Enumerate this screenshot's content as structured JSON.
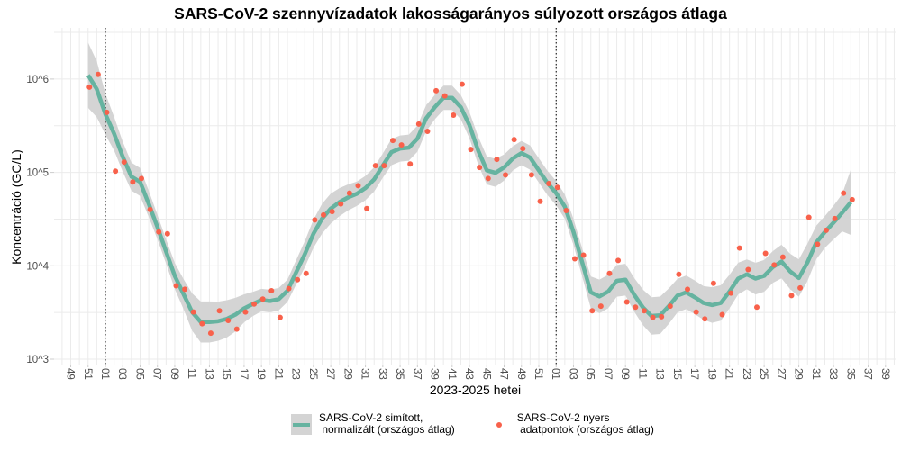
{
  "chart_data": {
    "type": "line",
    "title": "SARS-CoV-2 szennyvízadatok lakosságarányos súlyozott országos átlaga",
    "xlabel": "2023-2025 hetei",
    "ylabel": "Koncentráció (GC/L)",
    "y_scale": "log10",
    "ylim": [
      1000,
      3000000
    ],
    "y_ticks": [
      {
        "value": 1000,
        "label": "10^3"
      },
      {
        "value": 10000,
        "label": "10^4"
      },
      {
        "value": 100000,
        "label": "10^5"
      },
      {
        "value": 1000000,
        "label": "10^6"
      }
    ],
    "x_ticks": [
      "2023-W49",
      "2023-W51",
      "2024-W01",
      "2024-W03",
      "2024-W05",
      "2024-W07",
      "2024-W09",
      "2024-W11",
      "2024-W13",
      "2024-W15",
      "2024-W17",
      "2024-W19",
      "2024-W21",
      "2024-W23",
      "2024-W25",
      "2024-W27",
      "2024-W29",
      "2024-W31",
      "2024-W33",
      "2024-W35",
      "2024-W37",
      "2024-W39",
      "2024-W41",
      "2024-W43",
      "2024-W45",
      "2024-W47",
      "2024-W49",
      "2024-W51",
      "2025-W01",
      "2025-W03",
      "2025-W05",
      "2025-W07",
      "2025-W09",
      "2025-W11",
      "2025-W13",
      "2025-W15",
      "2025-W17",
      "2025-W19",
      "2025-W21",
      "2025-W23",
      "2025-W25",
      "2025-W27",
      "2025-W29",
      "2025-W31",
      "2025-W33",
      "2025-W35",
      "2025-W37",
      "2025-W39"
    ],
    "x_tick_labels": [
      "49",
      "51",
      "01",
      "03",
      "05",
      "07",
      "09",
      "11",
      "13",
      "15",
      "17",
      "19",
      "21",
      "23",
      "25",
      "27",
      "29",
      "31",
      "33",
      "35",
      "37",
      "39",
      "41",
      "43",
      "45",
      "47",
      "49",
      "51",
      "01",
      "03",
      "05",
      "07",
      "09",
      "11",
      "13",
      "15",
      "17",
      "19",
      "21",
      "23",
      "25",
      "27",
      "29",
      "31",
      "33",
      "35",
      "37",
      "39"
    ],
    "year_boundaries": [
      "2024-W01",
      "2025-W01"
    ],
    "grid": true,
    "legend_position": "bottom",
    "x": [
      "2023-W51",
      "2023-W52",
      "2024-W01",
      "2024-W02",
      "2024-W03",
      "2024-W04",
      "2024-W05",
      "2024-W06",
      "2024-W07",
      "2024-W08",
      "2024-W09",
      "2024-W10",
      "2024-W11",
      "2024-W12",
      "2024-W13",
      "2024-W14",
      "2024-W15",
      "2024-W16",
      "2024-W17",
      "2024-W18",
      "2024-W19",
      "2024-W20",
      "2024-W21",
      "2024-W22",
      "2024-W23",
      "2024-W24",
      "2024-W25",
      "2024-W26",
      "2024-W27",
      "2024-W28",
      "2024-W29",
      "2024-W30",
      "2024-W31",
      "2024-W32",
      "2024-W33",
      "2024-W34",
      "2024-W35",
      "2024-W36",
      "2024-W37",
      "2024-W38",
      "2024-W39",
      "2024-W40",
      "2024-W41",
      "2024-W42",
      "2024-W43",
      "2024-W44",
      "2024-W45",
      "2024-W46",
      "2024-W47",
      "2024-W48",
      "2024-W49",
      "2024-W50",
      "2024-W51",
      "2024-W52",
      "2025-W01",
      "2025-W02",
      "2025-W03",
      "2025-W04",
      "2025-W05",
      "2025-W06",
      "2025-W07",
      "2025-W08",
      "2025-W09",
      "2025-W10",
      "2025-W11",
      "2025-W12",
      "2025-W13",
      "2025-W14",
      "2025-W15",
      "2025-W16",
      "2025-W17",
      "2025-W18",
      "2025-W19",
      "2025-W20",
      "2025-W21",
      "2025-W22",
      "2025-W23",
      "2025-W24",
      "2025-W25",
      "2025-W26",
      "2025-W27",
      "2025-W28",
      "2025-W29",
      "2025-W30",
      "2025-W31",
      "2025-W32",
      "2025-W33",
      "2025-W34",
      "2025-W35"
    ],
    "series": [
      {
        "name": "SARS-CoV-2 simított,\n normalizált (országos átlag)",
        "kind": "smoothed-line-with-ci",
        "color": "#66b3a0",
        "band_color": "#d4d4d4",
        "values": [
          1100000,
          780000,
          420000,
          260000,
          147000,
          90000,
          79000,
          46000,
          26000,
          14200,
          7800,
          5000,
          3200,
          2500,
          2500,
          2550,
          2700,
          3000,
          3500,
          3900,
          4300,
          4200,
          4400,
          5400,
          8500,
          13300,
          22000,
          32000,
          41000,
          48000,
          54000,
          59000,
          68000,
          84000,
          118000,
          165000,
          180000,
          184000,
          230000,
          380000,
          500000,
          630000,
          630000,
          500000,
          320000,
          172000,
          105000,
          99000,
          113000,
          141000,
          161000,
          144000,
          105000,
          77000,
          60000,
          43000,
          23000,
          10900,
          5200,
          4700,
          5300,
          6900,
          7100,
          4900,
          3600,
          2900,
          2950,
          3700,
          4800,
          5200,
          4600,
          4000,
          3800,
          4000,
          5300,
          7300,
          8100,
          7300,
          7800,
          9700,
          11100,
          8700,
          7400,
          10900,
          17700,
          23000,
          29000,
          37000,
          48000
        ],
        "ci_log10_halfwidth": [
          0.35,
          0.3,
          0.22,
          0.18,
          0.16,
          0.15,
          0.15,
          0.14,
          0.13,
          0.13,
          0.14,
          0.16,
          0.2,
          0.22,
          0.22,
          0.21,
          0.2,
          0.18,
          0.15,
          0.13,
          0.12,
          0.12,
          0.12,
          0.12,
          0.13,
          0.14,
          0.15,
          0.16,
          0.16,
          0.15,
          0.14,
          0.13,
          0.13,
          0.13,
          0.13,
          0.14,
          0.14,
          0.14,
          0.14,
          0.14,
          0.13,
          0.13,
          0.13,
          0.13,
          0.14,
          0.15,
          0.15,
          0.15,
          0.14,
          0.13,
          0.13,
          0.13,
          0.13,
          0.13,
          0.13,
          0.13,
          0.14,
          0.15,
          0.17,
          0.18,
          0.18,
          0.17,
          0.17,
          0.18,
          0.19,
          0.2,
          0.2,
          0.19,
          0.18,
          0.18,
          0.18,
          0.18,
          0.19,
          0.19,
          0.18,
          0.17,
          0.16,
          0.17,
          0.17,
          0.17,
          0.18,
          0.19,
          0.2,
          0.2,
          0.18,
          0.17,
          0.18,
          0.2,
          0.35
        ]
      },
      {
        "name": "SARS-CoV-2 nyers\n adatpontok (országos átlag)",
        "kind": "points",
        "color": "#f8614b",
        "values": [
          820000,
          1120000,
          440000,
          103000,
          129000,
          79000,
          86000,
          40000,
          23000,
          22000,
          6100,
          5600,
          3200,
          2400,
          1900,
          3300,
          2600,
          2100,
          3200,
          3900,
          4400,
          5400,
          2800,
          5700,
          7100,
          8300,
          31000,
          35000,
          38000,
          46000,
          60000,
          72000,
          41000,
          118000,
          118000,
          220000,
          197000,
          123000,
          330000,
          275000,
          750000,
          660000,
          410000,
          880000,
          176000,
          113000,
          86000,
          138000,
          94000,
          225000,
          180000,
          94000,
          49000,
          76000,
          69000,
          39000,
          11900,
          13000,
          3300,
          3700,
          8300,
          11400,
          4100,
          3600,
          3300,
          2800,
          2850,
          3700,
          8100,
          5600,
          3200,
          2700,
          6500,
          3000,
          5100,
          15500,
          9100,
          3600,
          13600,
          10200,
          12400,
          4800,
          5800,
          33000,
          17000,
          24000,
          32000,
          60000,
          51000
        ]
      }
    ]
  }
}
